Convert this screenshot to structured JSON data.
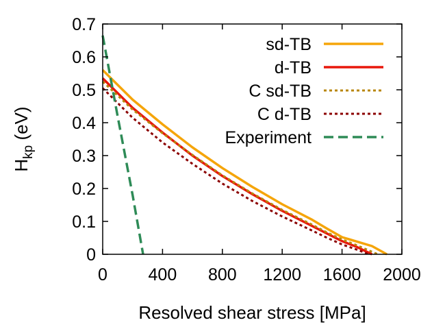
{
  "chart_data": {
    "type": "line",
    "title": "",
    "xlabel": "Resolved shear stress [MPa]",
    "ylabel": {
      "main": "H",
      "sub": "kp",
      "rest": " (eV)"
    },
    "xlim": [
      0,
      2000
    ],
    "ylim": [
      0,
      0.7
    ],
    "xticks": [
      0,
      400,
      800,
      1200,
      1600,
      2000
    ],
    "yticks": [
      0,
      0.1,
      0.2,
      0.3,
      0.4,
      0.5,
      0.6,
      0.7
    ],
    "xtick_labels": [
      "0",
      "400",
      "800",
      "1200",
      "1600",
      "2000"
    ],
    "ytick_labels": [
      "0",
      "0.1",
      "0.2",
      "0.3",
      "0.4",
      "0.5",
      "0.6",
      "0.7"
    ],
    "grid": false,
    "legend_position": "top-right",
    "series": [
      {
        "name": "sd-TB",
        "color": "#f5a50a",
        "style": "solid",
        "points": [
          [
            0,
            0.56
          ],
          [
            200,
            0.47
          ],
          [
            400,
            0.395
          ],
          [
            600,
            0.325
          ],
          [
            800,
            0.262
          ],
          [
            1000,
            0.205
          ],
          [
            1200,
            0.152
          ],
          [
            1400,
            0.105
          ],
          [
            1500,
            0.078
          ],
          [
            1600,
            0.052
          ],
          [
            1800,
            0.025
          ],
          [
            1900,
            0.0
          ]
        ]
      },
      {
        "name": "d-TB",
        "color": "#e8180c",
        "style": "solid",
        "points": [
          [
            0,
            0.535
          ],
          [
            200,
            0.445
          ],
          [
            400,
            0.37
          ],
          [
            600,
            0.3
          ],
          [
            800,
            0.238
          ],
          [
            1000,
            0.183
          ],
          [
            1200,
            0.132
          ],
          [
            1400,
            0.086
          ],
          [
            1500,
            0.063
          ],
          [
            1600,
            0.04
          ],
          [
            1700,
            0.022
          ],
          [
            1800,
            0.0
          ]
        ]
      },
      {
        "name": "C sd-TB",
        "color": "#b8860b",
        "style": "dotted",
        "points": [
          [
            0,
            0.525
          ],
          [
            200,
            0.44
          ],
          [
            400,
            0.368
          ],
          [
            600,
            0.302
          ],
          [
            800,
            0.24
          ],
          [
            1000,
            0.185
          ],
          [
            1200,
            0.135
          ],
          [
            1400,
            0.09
          ],
          [
            1500,
            0.066
          ],
          [
            1600,
            0.045
          ],
          [
            1700,
            0.027
          ],
          [
            1840,
            0.0
          ]
        ]
      },
      {
        "name": "C d-TB",
        "color": "#8b0000",
        "style": "dotted",
        "points": [
          [
            0,
            0.505
          ],
          [
            200,
            0.415
          ],
          [
            400,
            0.34
          ],
          [
            600,
            0.275
          ],
          [
            800,
            0.215
          ],
          [
            1000,
            0.162
          ],
          [
            1200,
            0.115
          ],
          [
            1400,
            0.072
          ],
          [
            1500,
            0.05
          ],
          [
            1600,
            0.03
          ],
          [
            1700,
            0.014
          ],
          [
            1780,
            0.0
          ]
        ]
      },
      {
        "name": "Experiment",
        "color": "#2e8b57",
        "style": "dashed",
        "points": [
          [
            0,
            0.665
          ],
          [
            100,
            0.42
          ],
          [
            200,
            0.18
          ],
          [
            270,
            0.0
          ]
        ]
      }
    ]
  }
}
